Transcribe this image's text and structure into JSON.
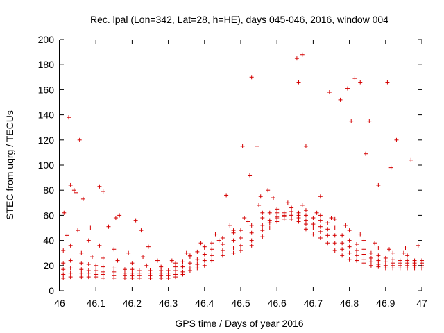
{
  "chart_data": {
    "type": "scatter",
    "title": "Rec. lpal (Lon=342, Lat=28, h=HE), days 045-046, 2016, window 004",
    "xlabel": "GPS time / Days of year 2016",
    "ylabel": "STEC from uqrg / TECUs",
    "xlim": [
      46,
      47
    ],
    "ylim": [
      0,
      200
    ],
    "xticks": [
      "46",
      "46.1",
      "46.2",
      "46.3",
      "46.4",
      "46.5",
      "46.6",
      "46.7",
      "46.8",
      "46.9",
      "47"
    ],
    "yticks": [
      "0",
      "20",
      "40",
      "60",
      "80",
      "100",
      "120",
      "140",
      "160",
      "180",
      "200"
    ],
    "grid": false,
    "legend": "none",
    "marker": "plus",
    "color": "#d40000",
    "series": [
      {
        "x": [
          46.01,
          46.03,
          46.06,
          46.08,
          46.1,
          46.12,
          46.15,
          46.18,
          46.2,
          46.22,
          46.25,
          46.28,
          46.3,
          46.32,
          46.34,
          46.36,
          46.38,
          46.4,
          46.42,
          46.45,
          46.48,
          46.5,
          46.53,
          46.56,
          46.58,
          46.6,
          46.62,
          46.64,
          46.66,
          46.68,
          46.7,
          46.72,
          46.74,
          46.76,
          46.78,
          46.8,
          46.82,
          46.84,
          46.86,
          46.88,
          46.9,
          46.92,
          46.94,
          46.96,
          46.98,
          47.0
        ],
        "y": [
          10,
          11,
          11,
          11,
          11,
          10,
          10,
          10,
          10,
          10,
          10,
          10,
          10,
          11,
          13,
          16,
          18,
          20,
          24,
          28,
          30,
          32,
          36,
          43,
          50,
          55,
          57,
          57,
          55,
          49,
          45,
          42,
          38,
          32,
          28,
          25,
          24,
          22,
          20,
          19,
          18,
          18,
          18,
          18,
          18,
          18
        ]
      },
      {
        "x": [
          46.01,
          46.03,
          46.06,
          46.08,
          46.1,
          46.12,
          46.15,
          46.18,
          46.2,
          46.22,
          46.25,
          46.28,
          46.3,
          46.32,
          46.34,
          46.36,
          46.38,
          46.4,
          46.42,
          46.45,
          46.48,
          46.5,
          46.53,
          46.56,
          46.58,
          46.6,
          46.62,
          46.64,
          46.66,
          46.68,
          46.7,
          46.72,
          46.74,
          46.76,
          46.78,
          46.8,
          46.82,
          46.84,
          46.86,
          46.88,
          46.9,
          46.92,
          46.94,
          46.96,
          46.98,
          47.0
        ],
        "y": [
          13,
          14,
          14,
          14,
          13,
          13,
          12,
          12,
          12,
          12,
          12,
          12,
          12,
          13,
          15,
          18,
          21,
          24,
          28,
          32,
          34,
          36,
          40,
          48,
          54,
          58,
          59,
          60,
          58,
          53,
          50,
          47,
          44,
          38,
          33,
          30,
          28,
          25,
          23,
          21,
          20,
          20,
          20,
          20,
          20,
          20
        ]
      },
      {
        "x": [
          46.01,
          46.03,
          46.06,
          46.08,
          46.1,
          46.12,
          46.15,
          46.18,
          46.2,
          46.22,
          46.25,
          46.28,
          46.3,
          46.32,
          46.34,
          46.36,
          46.38,
          46.4,
          46.42,
          46.45,
          46.48,
          46.5,
          46.53,
          46.56,
          46.58,
          46.6,
          46.62,
          46.64,
          46.66,
          46.68,
          46.7,
          46.72,
          46.74,
          46.76,
          46.78,
          46.8,
          46.82,
          46.84,
          46.86,
          46.88,
          46.9,
          46.92,
          46.94,
          46.96,
          46.98,
          47.0
        ],
        "y": [
          17,
          18,
          17,
          16,
          16,
          15,
          15,
          14,
          14,
          14,
          14,
          14,
          14,
          16,
          19,
          22,
          25,
          29,
          33,
          37,
          40,
          42,
          46,
          52,
          56,
          59,
          60,
          61,
          60,
          56,
          53,
          51,
          49,
          44,
          38,
          35,
          32,
          29,
          26,
          24,
          23,
          22,
          22,
          22,
          22,
          22
        ]
      },
      {
        "x": [
          46.01,
          46.03,
          46.06,
          46.08,
          46.1,
          46.12,
          46.15,
          46.18,
          46.2,
          46.22,
          46.25,
          46.28,
          46.3,
          46.32,
          46.34,
          46.36,
          46.38,
          46.4,
          46.42,
          46.45,
          46.48,
          46.5,
          46.53,
          46.56,
          46.58,
          46.6,
          46.62,
          46.64,
          46.66,
          46.68,
          46.7,
          46.72,
          46.74,
          46.76,
          46.78,
          46.8,
          46.82,
          46.84,
          46.86,
          46.88,
          46.9,
          46.92,
          46.94,
          46.96,
          46.98,
          47.0
        ],
        "y": [
          22,
          24,
          22,
          21,
          20,
          19,
          18,
          17,
          17,
          16,
          16,
          16,
          16,
          19,
          23,
          27,
          31,
          35,
          38,
          42,
          46,
          48,
          52,
          58,
          62,
          62,
          62,
          63,
          62,
          60,
          58,
          56,
          54,
          50,
          44,
          40,
          37,
          33,
          30,
          28,
          26,
          25,
          24,
          24,
          24,
          24
        ]
      },
      {
        "x": [
          46.01,
          46.03,
          46.06,
          46.09,
          46.12,
          46.16,
          46.2,
          46.24,
          46.28,
          46.32,
          46.36,
          46.4,
          46.44,
          46.48,
          46.52,
          46.56,
          46.6,
          46.64,
          46.68,
          46.72,
          46.76,
          46.8,
          46.84,
          46.88,
          46.92,
          46.96
        ],
        "y": [
          32,
          36,
          30,
          27,
          26,
          24,
          22,
          20,
          19,
          22,
          28,
          34,
          40,
          48,
          55,
          62,
          65,
          66,
          64,
          60,
          57,
          48,
          40,
          34,
          30,
          28
        ]
      },
      {
        "x": [
          46.02,
          46.05,
          46.08,
          46.11,
          46.15,
          46.19,
          46.23,
          46.27,
          46.31,
          46.35,
          46.39,
          46.43,
          46.47,
          46.51,
          46.55,
          46.59,
          46.63,
          46.67,
          46.71,
          46.75,
          46.79,
          46.83,
          46.87,
          46.91,
          46.95,
          46.99
        ],
        "y": [
          44,
          48,
          40,
          36,
          33,
          30,
          27,
          24,
          24,
          30,
          38,
          45,
          52,
          58,
          68,
          74,
          70,
          68,
          62,
          58,
          52,
          45,
          38,
          33,
          30,
          36
        ]
      },
      {
        "x": [
          46.012,
          46.025,
          46.03,
          46.04,
          46.045,
          46.055,
          46.065,
          46.085,
          46.11,
          46.12,
          46.135,
          46.155,
          46.165,
          46.21,
          46.225,
          46.245,
          46.46,
          46.505,
          46.525,
          46.53,
          46.545,
          46.555,
          46.575,
          46.655,
          46.66,
          46.67,
          46.68,
          46.72,
          46.745,
          46.775,
          46.795,
          46.805,
          46.815,
          46.83,
          46.845,
          46.855,
          46.88,
          46.905,
          46.915,
          46.93,
          46.955,
          46.97
        ],
        "y": [
          62,
          138,
          84,
          80,
          78,
          120,
          73,
          50,
          83,
          79,
          51,
          58,
          60,
          56,
          48,
          35,
          76,
          115,
          92,
          170,
          115,
          75,
          80,
          185,
          166,
          188,
          115,
          75,
          158,
          152,
          161,
          135,
          169,
          166,
          109,
          135,
          84,
          166,
          98,
          120,
          34,
          104
        ]
      }
    ]
  }
}
